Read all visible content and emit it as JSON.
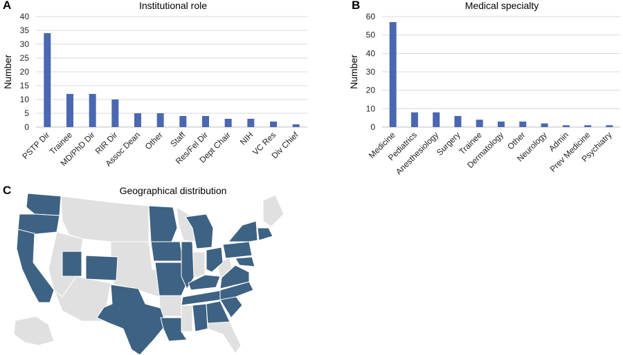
{
  "panels": {
    "a_letter": "A",
    "b_letter": "B",
    "c_letter": "C"
  },
  "chart_data": [
    {
      "id": "A",
      "type": "bar",
      "title": "Institutional role",
      "xlabel": "",
      "ylabel": "Number",
      "ylim": [
        0,
        40
      ],
      "yticks": [
        0,
        5,
        10,
        15,
        20,
        25,
        30,
        35,
        40
      ],
      "grid": true,
      "categories": [
        "PSTP Dir",
        "Trainee",
        "MD/PhD Dir",
        "RIR Dir",
        "Assoc Dean",
        "Other",
        "Staff",
        "Res/Fel Dir",
        "Dept Chair",
        "NIH",
        "VC Res",
        "Div Chief"
      ],
      "values": [
        34,
        12,
        12,
        10,
        5,
        5,
        4,
        4,
        3,
        3,
        2,
        1
      ],
      "color": "#4a67b0"
    },
    {
      "id": "B",
      "type": "bar",
      "title": "Medical specialty",
      "xlabel": "",
      "ylabel": "Number",
      "ylim": [
        0,
        60
      ],
      "yticks": [
        0,
        10,
        20,
        30,
        40,
        50,
        60
      ],
      "grid": true,
      "categories": [
        "Medicine",
        "Pediatrics",
        "Anesthesiology",
        "Surgery",
        "Trainee",
        "Dermatology",
        "Other",
        "Neurology",
        "Admin",
        "Prev Medicine",
        "Psychiatry"
      ],
      "values": [
        57,
        8,
        8,
        6,
        4,
        3,
        3,
        2,
        1,
        1,
        1
      ],
      "color": "#4a67b0"
    }
  ],
  "map": {
    "title": "Geographical distribution",
    "highlight_color": "#3d6283",
    "base_color": "#e0e0e0"
  }
}
